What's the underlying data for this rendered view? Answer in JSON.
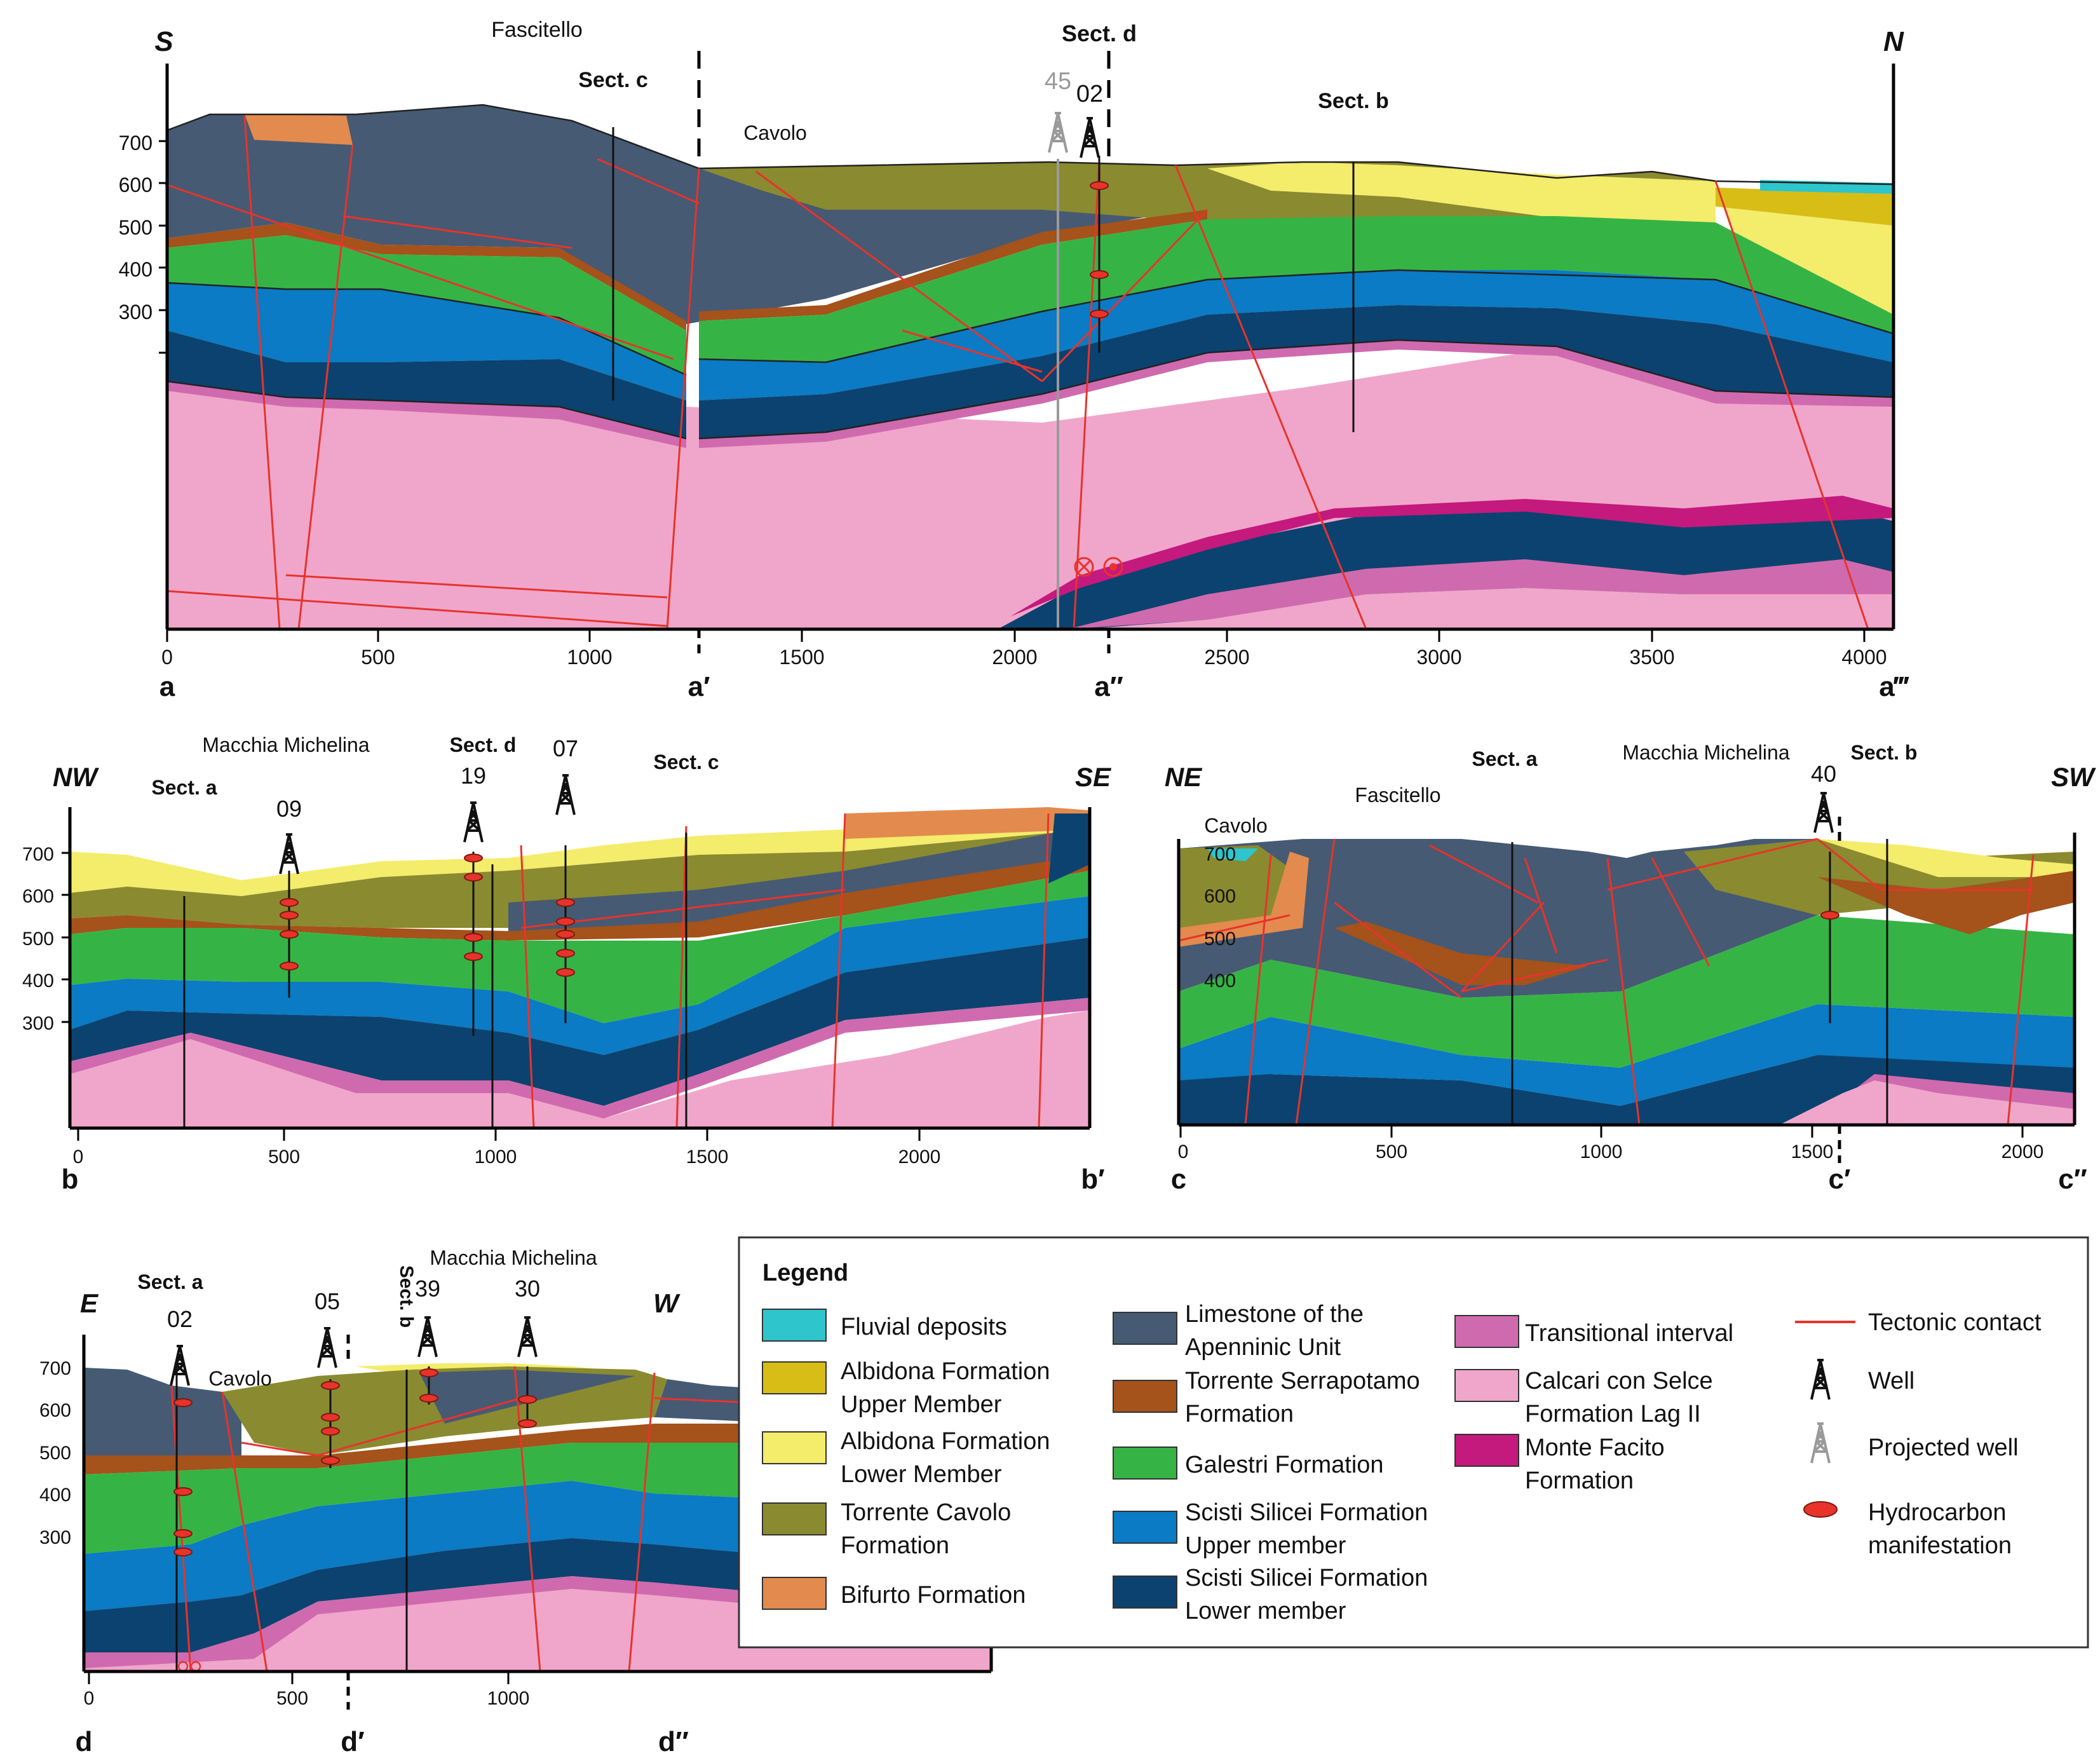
{
  "colors": {
    "fluvial": "#2ec5cc",
    "albidona_upper": "#d8bd16",
    "albidona_lower": "#f4ec6b",
    "torrente_cavolo": "#8a8a30",
    "bifurto": "#e38a4e",
    "limestone_apenninic": "#465a73",
    "torrente_serrapotamo": "#a5521b",
    "galestri": "#35b445",
    "scisti_upper": "#0a7bc4",
    "scisti_lower": "#0c426f",
    "transitional": "#d06aae",
    "calcari": "#f0a6cb",
    "monte_facito": "#c4197d",
    "fault": "#e8332b",
    "projected": "#9a9a9a"
  },
  "section_a": {
    "dir_left": "S",
    "dir_right": "N",
    "places": {
      "fascitello": "Fascitello",
      "cavolo": "Cavolo"
    },
    "cross": {
      "sect_c": "Sect. c",
      "sect_d": "Sect. d",
      "sect_b": "Sect. b"
    },
    "wells": {
      "projected": "45",
      "w02": "02"
    },
    "depth_ticks": [
      "700",
      "600",
      "500",
      "400",
      "300"
    ],
    "x_ticks": [
      "0",
      "500",
      "1000",
      "1500",
      "2000",
      "2500",
      "3000",
      "3500",
      "4000"
    ],
    "points": {
      "a": "a",
      "a1": "a′",
      "a2": "a″",
      "a3": "a‴"
    }
  },
  "section_b": {
    "dir_left": "NW",
    "dir_right": "SE",
    "places": {
      "macchia": "Macchia Michelina"
    },
    "cross": {
      "sect_a": "Sect. a",
      "sect_d": "Sect. d",
      "sect_c": "Sect. c"
    },
    "wells": {
      "w09": "09",
      "w19": "19",
      "w07": "07"
    },
    "depth_ticks": [
      "700",
      "600",
      "500",
      "400",
      "300"
    ],
    "x_ticks": [
      "0",
      "500",
      "1000",
      "1500",
      "2000"
    ],
    "points": {
      "b": "b",
      "b1": "b′"
    }
  },
  "section_c": {
    "dir_left": "NE",
    "dir_right": "SW",
    "places": {
      "cavolo": "Cavolo",
      "fascitello": "Fascitello",
      "macchia": "Macchia Michelina"
    },
    "cross": {
      "sect_a": "Sect. a",
      "sect_b": "Sect. b"
    },
    "wells": {
      "w40": "40"
    },
    "depth_ticks": [
      "700",
      "600",
      "500",
      "400"
    ],
    "x_ticks": [
      "0",
      "500",
      "1000",
      "1500",
      "2000"
    ],
    "points": {
      "c": "c",
      "c1": "c′",
      "c2": "c″"
    }
  },
  "section_d": {
    "dir_left": "E",
    "dir_right": "W",
    "places": {
      "macchia": "Macchia Michelina",
      "cavolo": "Cavolo"
    },
    "cross": {
      "sect_a": "Sect. a",
      "sect_b": "Sect. b"
    },
    "wells": {
      "w02": "02",
      "w05": "05",
      "w39": "39",
      "w30": "30"
    },
    "depth_ticks": [
      "700",
      "600",
      "500",
      "400",
      "300"
    ],
    "x_ticks": [
      "0",
      "500",
      "1000"
    ],
    "points": {
      "d": "d",
      "d1": "d′",
      "d2": "d″"
    }
  },
  "legend": {
    "title": "Legend",
    "fluvial": "Fluvial deposits",
    "albidona_upper_1": "Albidona Formation",
    "albidona_upper_2": "Upper Member",
    "albidona_lower_1": "Albidona Formation",
    "albidona_lower_2": "Lower Member",
    "cavolo_1": "Torrente Cavolo",
    "cavolo_2": "Formation",
    "bifurto": "Bifurto Formation",
    "limestone_1": "Limestone of the",
    "limestone_2": "Apenninic Unit",
    "serrapotamo_1": "Torrente Serrapotamo",
    "serrapotamo_2": "Formation",
    "galestri": "Galestri Formation",
    "scisti_upper_1": "Scisti Silicei Formation",
    "scisti_upper_2": "Upper member",
    "scisti_lower_1": "Scisti Silicei Formation",
    "scisti_lower_2": "Lower member",
    "transitional": "Transitional interval",
    "calcari_1": "Calcari con Selce",
    "calcari_2": "Formation Lag II",
    "facito_1": "Monte Facito",
    "facito_2": "Formation",
    "tectonic": "Tectonic contact",
    "well": "Well",
    "projected": "Projected well",
    "hc_1": "Hydrocarbon",
    "hc_2": "manifestation"
  }
}
